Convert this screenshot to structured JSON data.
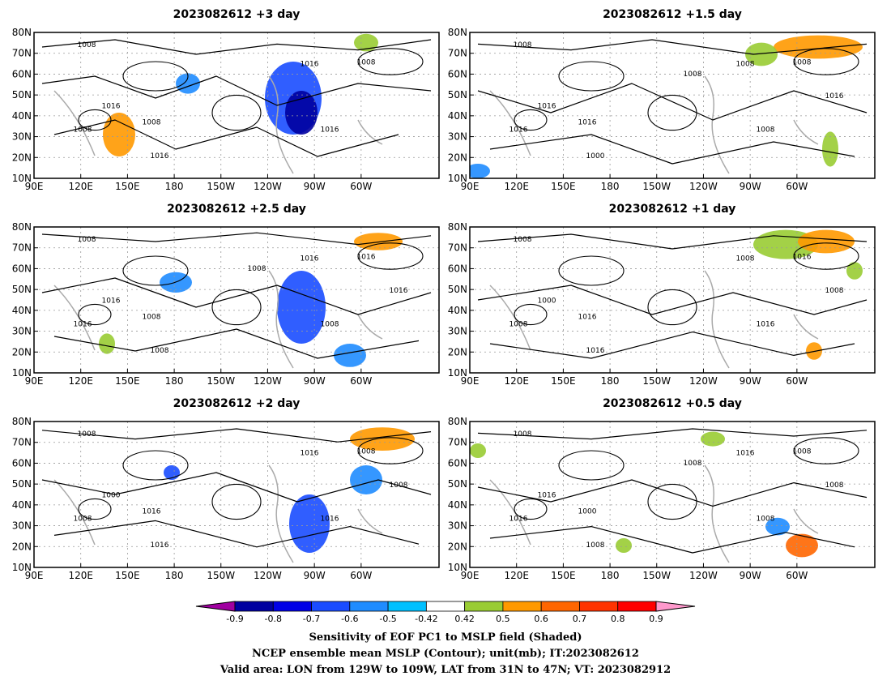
{
  "panels": [
    {
      "title": "2023082612  +3 day",
      "labels": [
        "1008",
        "1016",
        "1008",
        "1016",
        "1008",
        "1016",
        "1008",
        "1016"
      ]
    },
    {
      "title": "2023082612  +1.5 day",
      "labels": [
        "1008",
        "1008",
        "1008",
        "1016",
        "1016",
        "1000",
        "1016",
        "1008",
        "1016",
        "1008"
      ]
    },
    {
      "title": "2023082612  +2.5 day",
      "labels": [
        "1008",
        "1016",
        "1016",
        "1016",
        "1008",
        "1008",
        "1016",
        "1008",
        "1016",
        "1008"
      ]
    },
    {
      "title": "2023082612  +1 day",
      "labels": [
        "1008",
        "1008",
        "1016",
        "1000",
        "1016",
        "1016",
        "1008",
        "1016",
        "1008"
      ]
    },
    {
      "title": "2023082612  +2 day",
      "labels": [
        "1008",
        "1016",
        "1008",
        "1000",
        "1016",
        "1016",
        "1008",
        "1016",
        "1008"
      ]
    },
    {
      "title": "2023082612  +0.5 day",
      "labels": [
        "1008",
        "1016",
        "1008",
        "1016",
        "1000",
        "1008",
        "1016",
        "1008",
        "1008",
        "1008"
      ]
    }
  ],
  "axes": {
    "lat_ticks": [
      "80N",
      "70N",
      "60N",
      "50N",
      "40N",
      "30N",
      "20N",
      "10N"
    ],
    "lon_ticks": [
      "90E",
      "120E",
      "150E",
      "180",
      "150W",
      "120W",
      "90W",
      "60W"
    ]
  },
  "colorbar": {
    "ticks": [
      "-0.9",
      "-0.8",
      "-0.7",
      "-0.6",
      "-0.5",
      "-0.42",
      "0.42",
      "0.5",
      "0.6",
      "0.7",
      "0.8",
      "0.9"
    ],
    "colors": [
      "#a000a0",
      "#0000a0",
      "#0000e6",
      "#1a4cff",
      "#1f8cff",
      "#00c0ff",
      "#ffffff",
      "#99cc33",
      "#ff9900",
      "#ff6600",
      "#ff3300",
      "#ff0000",
      "#ff99cc"
    ]
  },
  "caption": {
    "line1": "Sensitivity of EOF PC1 to MSLP field (Shaded)",
    "line2": "NCEP ensemble mean MSLP (Contour); unit(mb); IT:2023082612",
    "line3": "Valid area: LON from 129W to 109W, LAT from 31N to 47N; VT: 2023082912"
  }
}
